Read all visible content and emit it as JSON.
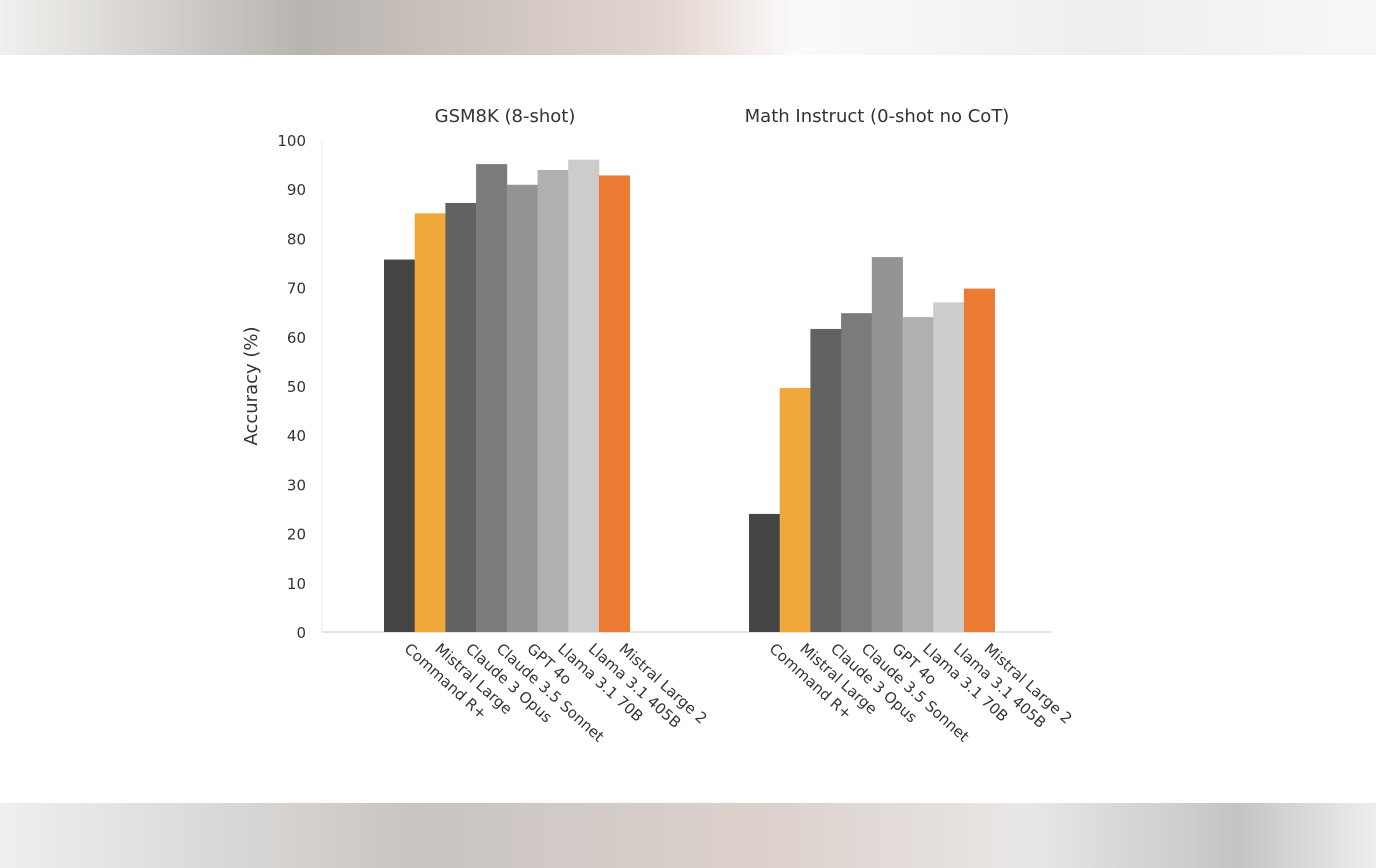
{
  "chart_data": [
    {
      "type": "bar",
      "title": "GSM8K (8-shot)",
      "ylabel": "Accuracy (%)",
      "ylim": [
        0,
        100
      ],
      "yticks": [
        "0",
        "10",
        "20",
        "30",
        "40",
        "50",
        "60",
        "70",
        "80",
        "90",
        "100"
      ],
      "categories": [
        "Command R+",
        "Mistral Large",
        "Claude 3 Opus",
        "Claude 3.5 Sonnet",
        "GPT 4o",
        "Llama 3.1 70B",
        "Llama 3.1 405B",
        "Mistral Large 2"
      ],
      "values": [
        75.7,
        85.1,
        87.2,
        95.1,
        90.9,
        93.9,
        96.0,
        92.8
      ],
      "colors": [
        "#444444",
        "#f0a83a",
        "#626262",
        "#7b7b7b",
        "#949494",
        "#b0b0b0",
        "#cccccc",
        "#ec7b33"
      ],
      "grid": false
    },
    {
      "type": "bar",
      "title": "Math Instruct (0-shot no CoT)",
      "ylim": [
        0,
        100
      ],
      "categories": [
        "Command R+",
        "Mistral Large",
        "Claude 3 Opus",
        "Claude 3.5 Sonnet",
        "GPT 4o",
        "Llama 3.1 70B",
        "Llama 3.1 405B",
        "Mistral Large 2"
      ],
      "values": [
        24.0,
        49.6,
        61.6,
        64.8,
        76.2,
        64.0,
        67.0,
        69.8
      ],
      "colors": [
        "#444444",
        "#f0a83a",
        "#626262",
        "#7b7b7b",
        "#949494",
        "#b0b0b0",
        "#cccccc",
        "#ec7b33"
      ],
      "grid": false
    }
  ]
}
